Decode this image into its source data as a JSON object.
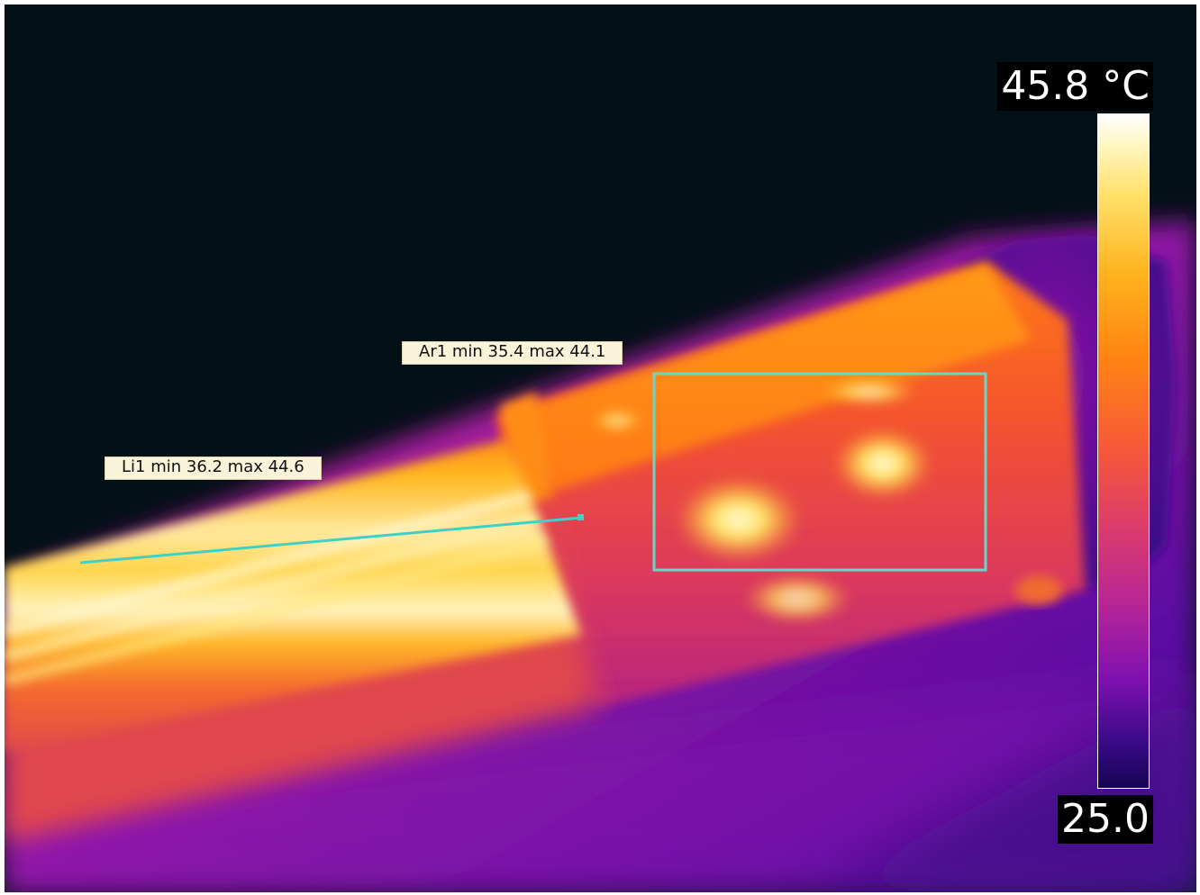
{
  "image": {
    "description_icon": "thermal-camera-view",
    "palette": [
      "#031016",
      "#2a0a7a",
      "#7a16b0",
      "#c02a8a",
      "#f05a3a",
      "#ff9a14",
      "#ffd84a",
      "#fffbe0"
    ]
  },
  "measurements": {
    "area": {
      "label": "Ar1 min 35.4 max 44.1",
      "color": "#6ad6c6"
    },
    "line": {
      "label": "Li1 min 36.2 max 44.6",
      "color": "#3fd0c8"
    }
  },
  "scale": {
    "max_label": "45.8 °C",
    "min_label": "25.0",
    "max_value": 45.8,
    "min_value": 25.0
  }
}
